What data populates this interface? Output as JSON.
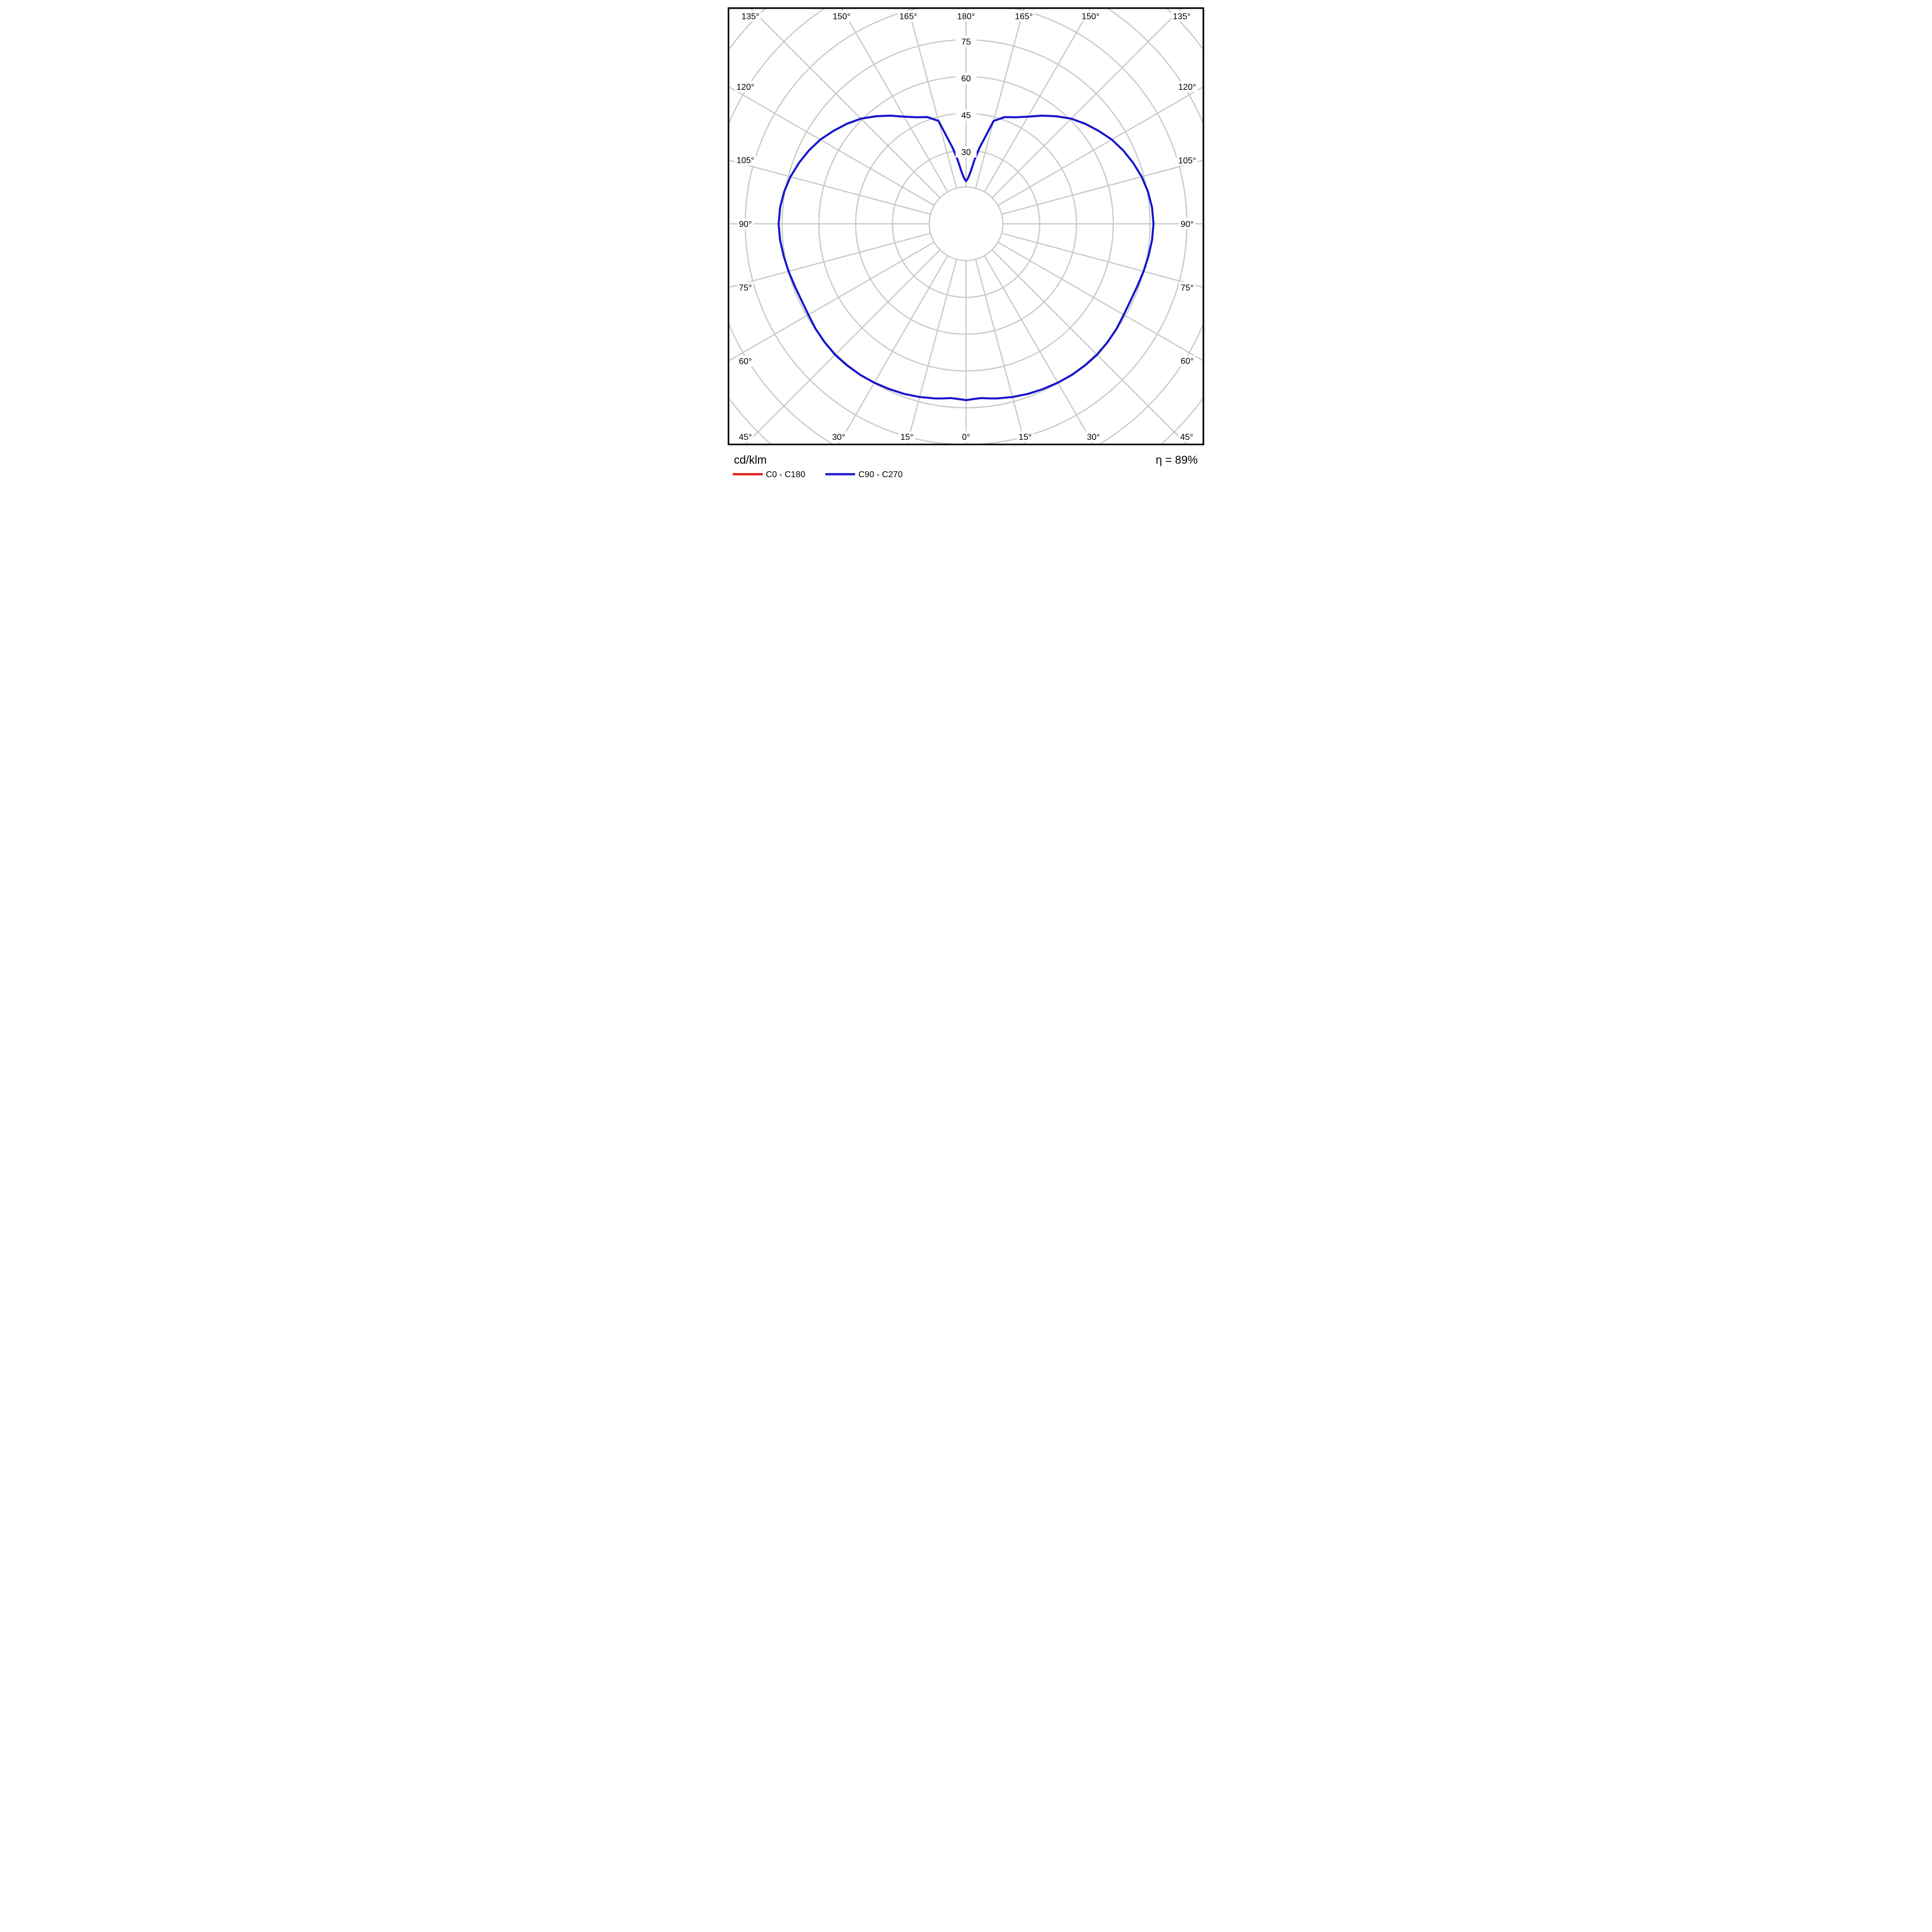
{
  "footer": {
    "units_label": "cd/klm",
    "efficiency_label": "η = 89%"
  },
  "legend": {
    "items": [
      {
        "label": "C0 - C180",
        "color": "#dd1414"
      },
      {
        "label": "C90 - C270",
        "color": "#1713cb"
      }
    ]
  },
  "chart_data": {
    "type": "polar",
    "subtype": "photometric-luminous-intensity-distribution",
    "radial_unit": "cd/klm",
    "radial_tick_labels": [
      "30",
      "45",
      "60",
      "75"
    ],
    "radial_ring_step": 15,
    "radial_rings_drawn": [
      15,
      30,
      45,
      60,
      75,
      90,
      105,
      120
    ],
    "angle_label_suffix": "°",
    "angle_labels_deg": [
      0,
      15,
      30,
      45,
      60,
      75,
      90,
      105,
      120,
      135,
      150,
      165,
      180
    ],
    "angle_spoke_step_deg": 15,
    "grid_on": true,
    "grid_color": "#c9c9c9",
    "border_color": "#000000",
    "background_color": "#ffffff",
    "symmetry": "values mirrored left/right about the vertical 0°-180° axis",
    "efficiency_percent": 89,
    "series": [
      {
        "name": "C0 - C180",
        "color": "#dd1414",
        "visible_in_plot": false,
        "note": "only legend swatch visible; curve coincides with / hidden behind C90 - C270",
        "values_cd_per_klm": null
      },
      {
        "name": "C90 - C270",
        "color": "#1713cb",
        "visible_in_plot": true,
        "gamma_deg": [
          0,
          2.5,
          5,
          7.5,
          10,
          15,
          20,
          25,
          30,
          35,
          40,
          45,
          50,
          55,
          60,
          65,
          70,
          75,
          80,
          85,
          90,
          95,
          100,
          105,
          110,
          115,
          120,
          125,
          130,
          135,
          140,
          145,
          150,
          155,
          160,
          165,
          167.5,
          170,
          172.5,
          175,
          177.5,
          180
        ],
        "values_cd_per_klm": [
          71.9,
          71.5,
          71.3,
          71.8,
          72.3,
          73.1,
          73.8,
          74.3,
          74.8,
          75.2,
          75.4,
          75.5,
          75.2,
          74.8,
          74.2,
          74.0,
          74.3,
          74.9,
          75.5,
          76.1,
          76.4,
          76.1,
          75.3,
          74.1,
          72.5,
          70.7,
          68.6,
          66.0,
          63.4,
          60.6,
          57.2,
          53.8,
          50.4,
          47.9,
          46.3,
          43.4,
          36.4,
          31.4,
          26.2,
          21.3,
          18.6,
          17.4
        ]
      }
    ]
  }
}
